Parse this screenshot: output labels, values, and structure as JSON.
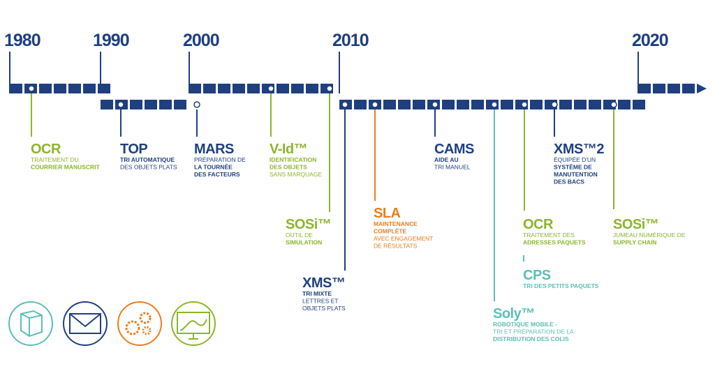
{
  "decades": [
    "1980",
    "1990",
    "2000",
    "2010",
    "2020"
  ],
  "milestones": [
    {
      "title": "OCR",
      "color": "#8cb52c",
      "lines": [
        {
          "text": "TRAITEMENT DU",
          "bold": false
        },
        {
          "text": "COURRIER MANUSCRIT",
          "bold": true
        }
      ]
    },
    {
      "title": "TOP",
      "color": "#1f3f7f",
      "lines": [
        {
          "text": "TRI AUTOMATIQUE",
          "bold": true
        },
        {
          "text": "DES OBJETS PLATS",
          "bold": false
        }
      ]
    },
    {
      "title": "MARS",
      "color": "#1f3f7f",
      "lines": [
        {
          "text": "PRÉPARATION DE",
          "bold": false
        },
        {
          "text": "LA TOURNÉE",
          "bold": true
        },
        {
          "text": "DES FACTEURS",
          "bold": true
        }
      ]
    },
    {
      "title": "V-Id™",
      "color": "#8cb52c",
      "lines": [
        {
          "text": "IDENTIFICATION",
          "bold": true
        },
        {
          "text": "DES OBJETS",
          "bold": true
        },
        {
          "text": "SANS MARQUAGE",
          "bold": false
        }
      ]
    },
    {
      "title": "SOSi™",
      "color": "#8cb52c",
      "lines": [
        {
          "text": "OUTIL DE",
          "bold": false
        },
        {
          "text": "SIMULATION",
          "bold": true
        }
      ]
    },
    {
      "title": "XMS™",
      "color": "#1f3f7f",
      "lines": [
        {
          "text": "TRI MIXTE",
          "bold": true
        },
        {
          "text": "LETTRES ET",
          "bold": false
        },
        {
          "text": "OBJETS PLATS",
          "bold": false
        }
      ]
    },
    {
      "title": "SLA",
      "color": "#ee7d1a",
      "lines": [
        {
          "text": "MAINTENANCE",
          "bold": true
        },
        {
          "text": "COMPLÈTE",
          "bold": true
        },
        {
          "text": "AVEC ENGAGEMENT",
          "bold": false
        },
        {
          "text": "DE RÉSULTATS",
          "bold": false
        }
      ]
    },
    {
      "title": "CAMS",
      "color": "#1f3f7f",
      "lines": [
        {
          "text": "AIDE AU",
          "bold": true
        },
        {
          "text": "TRI MANUEL",
          "bold": false
        }
      ]
    },
    {
      "title": "Soly™",
      "color": "#5bbfb6",
      "lines": [
        {
          "text": "ROBOTIQUE MOBILE -",
          "bold": true
        },
        {
          "text": "TRI ET PRÉPARATION DE LA",
          "bold": false
        },
        {
          "text": "DISTRIBUTION DES COLIS",
          "bold": true
        }
      ]
    },
    {
      "title": "OCR",
      "color": "#8cb52c",
      "lines": [
        {
          "text": "TRAITEMENT DES",
          "bold": false
        },
        {
          "text": "ADRESSES PAQUETS",
          "bold": true
        }
      ]
    },
    {
      "title": "CPS",
      "color": "#5bbfb6",
      "lines": [
        {
          "text": "TRI DES PETITS PAQUETS",
          "bold": true
        }
      ]
    },
    {
      "title": "XMS™2",
      "color": "#1f3f7f",
      "lines": [
        {
          "text": "ÉQUIPÉE D'UN",
          "bold": false
        },
        {
          "text": "SYSTÈME DE",
          "bold": true
        },
        {
          "text": "MANUTENTION",
          "bold": true
        },
        {
          "text": "DES BACS",
          "bold": true
        }
      ]
    },
    {
      "title": "SOSi™",
      "color": "#8cb52c",
      "lines": [
        {
          "text": "JUMEAU NUMÉRIQUE DE",
          "bold": false
        },
        {
          "text": "SUPPLY CHAIN",
          "bold": true
        }
      ]
    }
  ]
}
